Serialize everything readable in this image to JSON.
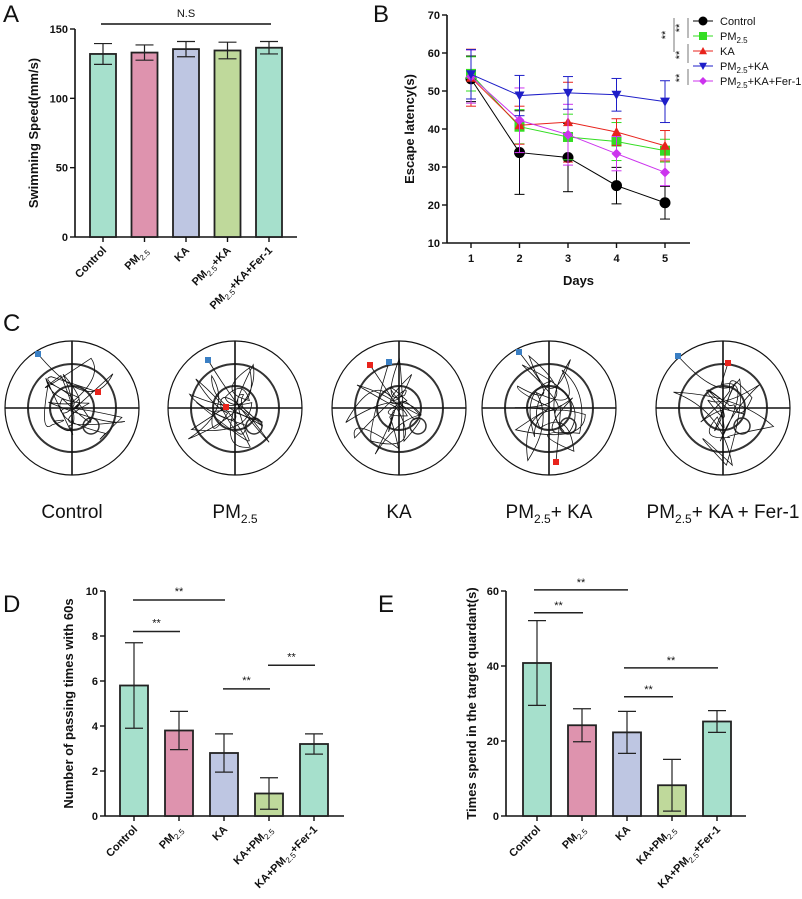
{
  "colors": {
    "control": "#a6e0cc",
    "pm25": "#de93ae",
    "ka": "#bec6e2",
    "pmka": "#bfd99b",
    "fer1": "#a6e0cc",
    "line_control": "#000000",
    "line_pm25": "#33dd22",
    "line_ka": "#e8231c",
    "line_pmka": "#1e1ec8",
    "line_fer1": "#cc33ee",
    "start_marker": "#3a7fc4",
    "end_marker": "#e8231c"
  },
  "chart_data": [
    {
      "panel": "A",
      "type": "bar",
      "title": "",
      "xlabel": "",
      "ylabel": "Swimming Speed(mm/s)",
      "ylim": [
        0,
        150
      ],
      "yticks": [
        "0",
        "50",
        "100",
        "150"
      ],
      "categories": [
        {
          "main": "Control",
          "sub": "",
          "tail": ""
        },
        {
          "main": "PM",
          "sub": "2.5",
          "tail": ""
        },
        {
          "main": "KA",
          "sub": "",
          "tail": ""
        },
        {
          "main": "PM",
          "sub": "2.5",
          "tail": "+KA"
        },
        {
          "main": "PM",
          "sub": "2.5",
          "tail": "+KA+Fer-1"
        }
      ],
      "values": [
        132,
        133,
        135.5,
        134.5,
        136.5
      ],
      "errors": [
        7.5,
        5.5,
        5.5,
        6,
        4.5
      ],
      "annotation": {
        "text": "N.S",
        "from": 0,
        "to": 4,
        "y": 166
      }
    },
    {
      "panel": "B",
      "type": "line",
      "xlabel": "Days",
      "ylabel": "Escape latency(s)",
      "x": [
        1,
        2,
        3,
        4,
        5
      ],
      "xticks": [
        "1",
        "2",
        "3",
        "4",
        "5"
      ],
      "ylim": [
        10,
        70
      ],
      "yticks": [
        "10",
        "20",
        "30",
        "40",
        "50",
        "60",
        "70"
      ],
      "legend_position": "top-right",
      "series": [
        {
          "name": "Control",
          "name_main": "Control",
          "sub": "",
          "tail": "",
          "marker": "circle",
          "values": [
            53.2,
            33.8,
            32.5,
            25.1,
            20.6
          ],
          "errors": [
            6,
            11,
            9,
            4.8,
            4.3
          ]
        },
        {
          "name": "PM2.5",
          "name_main": "PM",
          "sub": "2.5",
          "tail": "",
          "marker": "square",
          "values": [
            54.5,
            40.6,
            37.9,
            36.7,
            34.3
          ],
          "errors": [
            4.5,
            4.5,
            6,
            5,
            3
          ]
        },
        {
          "name": "KA",
          "name_main": "KA",
          "sub": "",
          "tail": "",
          "marker": "triangle-up",
          "values": [
            53.5,
            41.0,
            41.8,
            39.2,
            35.6
          ],
          "errors": [
            7.5,
            5,
            10.5,
            3.5,
            4
          ]
        },
        {
          "name": "PM2.5+KA",
          "name_main": "PM",
          "sub": "2.5",
          "tail": "+KA",
          "marker": "triangle-down",
          "values": [
            54.4,
            48.8,
            49.5,
            49.0,
            47.2
          ],
          "errors": [
            6.5,
            5.3,
            4.3,
            4.3,
            5.5
          ]
        },
        {
          "name": "PM2.5+KA+Fer-1",
          "name_main": "PM",
          "sub": "2.5",
          "tail": "+KA+Fer-1",
          "marker": "diamond",
          "values": [
            53.8,
            42.3,
            38.5,
            33.5,
            28.6
          ],
          "errors": [
            7,
            8.5,
            8,
            4.5,
            3.5
          ]
        }
      ],
      "significance": [
        "**",
        "**",
        "**",
        "**"
      ]
    },
    {
      "panel": "D",
      "type": "bar",
      "ylabel": "Number of passing times with 60s",
      "ylim": [
        0,
        10
      ],
      "yticks": [
        "0",
        "2",
        "4",
        "6",
        "8",
        "10"
      ],
      "categories": [
        {
          "main": "Control",
          "sub": "",
          "tail": ""
        },
        {
          "main": "PM",
          "sub": "2.5",
          "tail": ""
        },
        {
          "main": "KA",
          "sub": "",
          "tail": ""
        },
        {
          "main": "KA+PM",
          "sub": "2.5",
          "tail": ""
        },
        {
          "main": "KA+PM",
          "sub": "2.5",
          "tail": "+Fer-1"
        }
      ],
      "values": [
        5.8,
        3.8,
        2.8,
        1.0,
        3.2
      ],
      "errors": [
        1.9,
        0.85,
        0.85,
        0.7,
        0.45
      ],
      "annotations": [
        {
          "text": "**",
          "from": 0,
          "to": 2,
          "y": 9.6
        },
        {
          "text": "**",
          "from": 0,
          "to": 1,
          "y": 8.2
        },
        {
          "text": "**",
          "from": 3,
          "to": 4,
          "y": 6.7
        },
        {
          "text": "**",
          "from": 2,
          "to": 3,
          "y": 5.65
        }
      ]
    },
    {
      "panel": "E",
      "type": "bar",
      "ylabel": "Times spend in the target quardant(s)",
      "ylim": [
        0,
        60
      ],
      "yticks": [
        "0",
        "20",
        "40",
        "60"
      ],
      "categories": [
        {
          "main": "Control",
          "sub": "",
          "tail": ""
        },
        {
          "main": "PM",
          "sub": "2.5",
          "tail": ""
        },
        {
          "main": "KA",
          "sub": "",
          "tail": ""
        },
        {
          "main": "KA+PM",
          "sub": "2.5",
          "tail": ""
        },
        {
          "main": "KA+PM",
          "sub": "2.5",
          "tail": "+Fer-1"
        }
      ],
      "values": [
        40.8,
        24.2,
        22.3,
        8.2,
        25.2
      ],
      "errors": [
        11.3,
        4.4,
        5.6,
        6.9,
        2.9
      ],
      "annotations": [
        {
          "text": "**",
          "from": 0,
          "to": 2,
          "y": 60.3
        },
        {
          "text": "**",
          "from": 0,
          "to": 1,
          "y": 54.2
        },
        {
          "text": "**",
          "from": 2,
          "to": 4,
          "y": 39.5
        },
        {
          "text": "**",
          "from": 2,
          "to": 3,
          "y": 31.8
        }
      ]
    }
  ],
  "panel_letters": {
    "a": "A",
    "b": "B",
    "c": "C",
    "d": "D",
    "e": "E"
  },
  "tracks": [
    {
      "main": "Control",
      "sub": "",
      "tail": ""
    },
    {
      "main": "PM",
      "sub": "2.5",
      "tail": ""
    },
    {
      "main": "KA",
      "sub": "",
      "tail": ""
    },
    {
      "main": "PM",
      "sub": "2.5",
      "tail": "+ KA"
    },
    {
      "main": "PM",
      "sub": "2.5",
      "tail": "+ KA + Fer-1"
    }
  ]
}
